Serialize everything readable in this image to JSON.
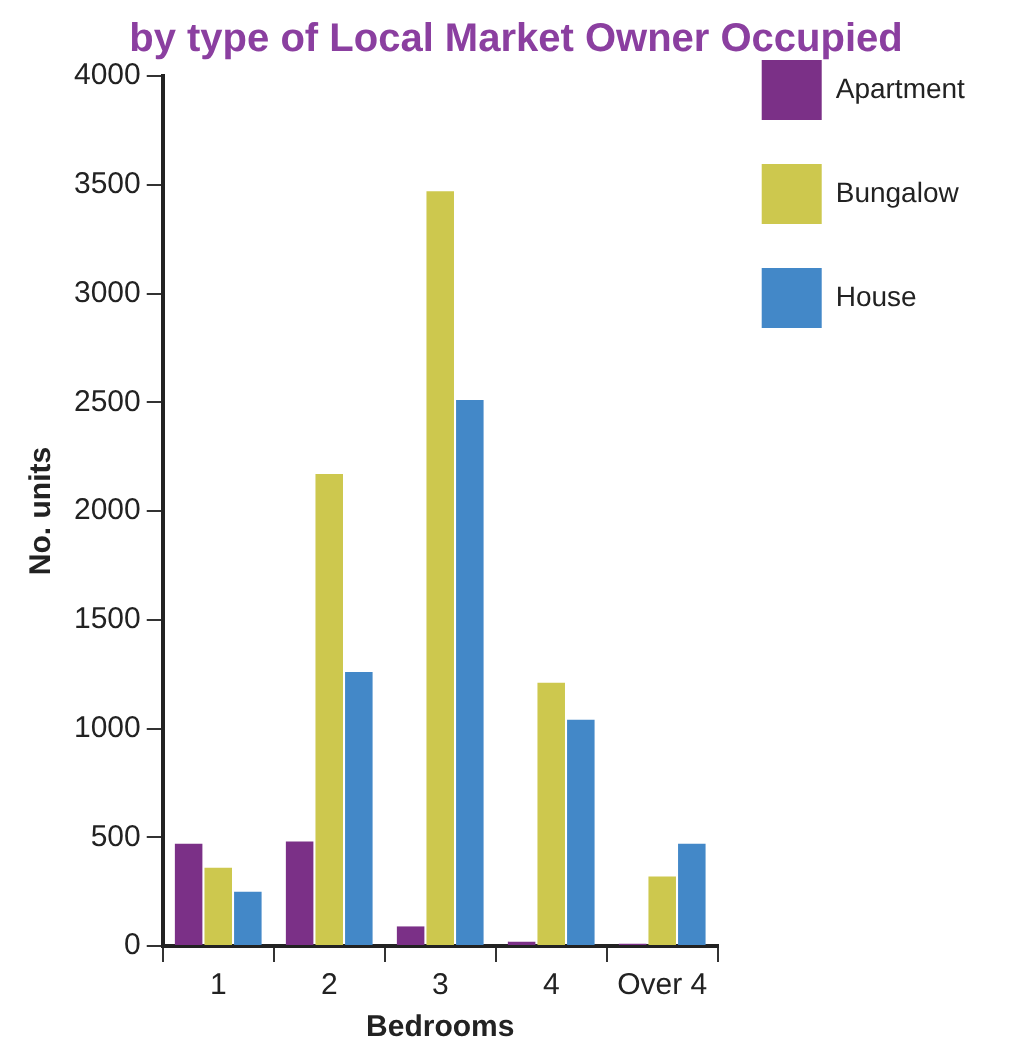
{
  "chart_data": {
    "type": "bar",
    "title": "by type of Local Market Owner Occupied",
    "xlabel": "Bedrooms",
    "ylabel": "No. units",
    "categories": [
      "1",
      "2",
      "3",
      "4",
      "Over 4"
    ],
    "series": [
      {
        "name": "Apartment",
        "color": "#7b3087",
        "values": [
          470,
          480,
          90,
          20,
          10
        ]
      },
      {
        "name": "Bungalow",
        "color": "#cdc84e",
        "values": [
          360,
          2170,
          3470,
          1210,
          320
        ]
      },
      {
        "name": "House",
        "color": "#4388c8",
        "values": [
          250,
          1260,
          2510,
          1040,
          470
        ]
      }
    ],
    "ylim": [
      0,
      4000
    ],
    "yticks": [
      0,
      500,
      1000,
      1500,
      2000,
      2500,
      3000,
      3500,
      4000
    ],
    "grid": false,
    "legend": "right"
  }
}
